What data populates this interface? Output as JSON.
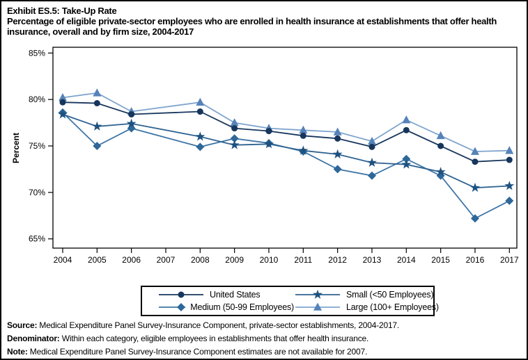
{
  "title": "Exhibit ES.5: Take-Up Rate",
  "subtitle": "Percentage of eligible private-sector employees who are enrolled in health insurance at establishments that offer health insurance, overall and by firm size, 2004-2017",
  "footer": {
    "source_label": "Source:",
    "source_text": " Medical Expenditure Panel Survey-Insurance Component, private-sector establishments, 2004-2017.",
    "denominator_label": "Denominator:",
    "denominator_text": " Within each category, eligible employees in establishments that offer health insurance.",
    "note_label": "Note:",
    "note_text": " Medical Expenditure Panel Survey-Insurance Component estimates are not available for 2007."
  },
  "chart_data": {
    "type": "line",
    "title": "Exhibit ES.5: Take-Up Rate",
    "xlabel": "",
    "ylabel": "Percent",
    "ylim": [
      64.5,
      85.6
    ],
    "grid": false,
    "legend_position": "bottom",
    "note": "No data points for 2007; lines connect 2006 directly to 2008.",
    "yticks": [
      {
        "value": 85,
        "label": "85%"
      },
      {
        "value": 80,
        "label": "80%"
      },
      {
        "value": 75,
        "label": "75%"
      },
      {
        "value": 70,
        "label": "70%"
      },
      {
        "value": 65,
        "label": "65%"
      }
    ],
    "x": [
      2004,
      2005,
      2006,
      2007,
      2008,
      2009,
      2010,
      2011,
      2012,
      2013,
      2014,
      2015,
      2016,
      2017
    ],
    "series": [
      {
        "name": "United States",
        "marker": "circle",
        "line_color": "#17365D",
        "marker_color": "#17365D",
        "values": [
          79.7,
          79.6,
          78.4,
          null,
          78.7,
          76.9,
          76.6,
          76.1,
          75.8,
          74.9,
          76.7,
          75.0,
          73.3,
          73.5
        ]
      },
      {
        "name": "Medium (50-99 Employees)",
        "marker": "diamond",
        "line_color": "#3E75A6",
        "marker_color": "#2E6899",
        "values": [
          78.6,
          75.0,
          76.9,
          null,
          74.9,
          75.8,
          75.3,
          74.4,
          72.5,
          71.8,
          73.6,
          71.8,
          67.2,
          69.1
        ]
      },
      {
        "name": "Small (<50 Employees)",
        "marker": "star",
        "line_color": "#2E6391",
        "marker_color": "#1D5180",
        "values": [
          78.4,
          77.1,
          77.4,
          null,
          76.0,
          75.1,
          75.2,
          74.5,
          74.1,
          73.2,
          73.0,
          72.2,
          70.5,
          70.7
        ]
      },
      {
        "name": "Large (100+ Employees)",
        "marker": "triangle-up",
        "line_color": "#7FA4CE",
        "marker_color": "#5583B9",
        "values": [
          80.2,
          80.7,
          78.7,
          null,
          79.7,
          77.5,
          76.9,
          76.7,
          76.5,
          75.5,
          77.8,
          76.1,
          74.4,
          74.5
        ]
      }
    ]
  }
}
